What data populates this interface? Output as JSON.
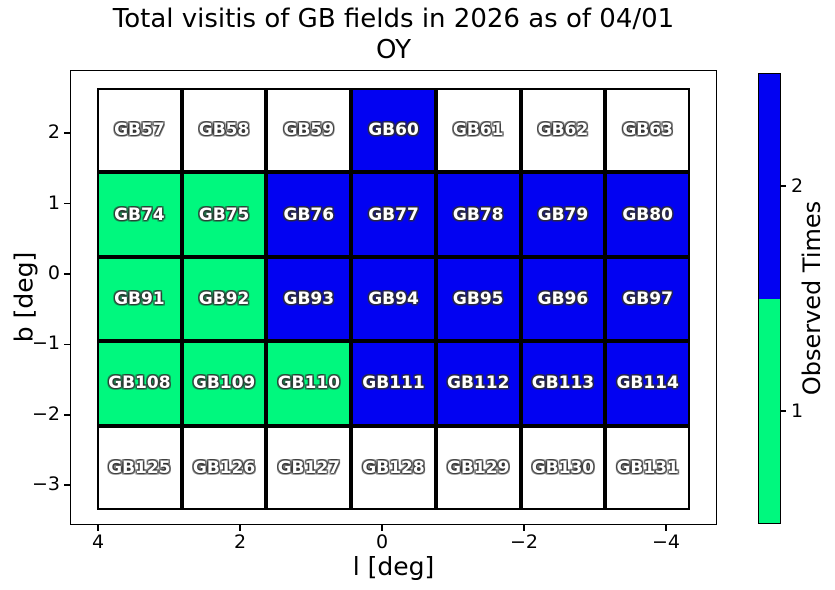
{
  "chart_data": {
    "type": "heatmap",
    "title_line1": "Total visitis of GB fields in 2026 as of 04/01",
    "title_line2": "OY",
    "xlabel": "l [deg]",
    "ylabel": "b [deg]",
    "x_ticks": [
      4,
      2,
      0,
      -2,
      -4
    ],
    "y_ticks": [
      2,
      1,
      0,
      -1,
      -2,
      -3
    ],
    "x_axis_inverted": true,
    "grid": false,
    "value_meaning": "observed times per field (0 = not observed/white)",
    "value_colors": {
      "0": "#ffffff",
      "1": "#00f87e",
      "2": "#0202f2"
    },
    "colorbar": {
      "label": "Observed Times",
      "tick_values": [
        2,
        1
      ],
      "segments_top_to_bottom": [
        {
          "value": 2,
          "color": "#0202f2"
        },
        {
          "value": 1,
          "color": "#00f87e"
        }
      ]
    },
    "rows": [
      {
        "cells": [
          {
            "label": "GB57",
            "value": 0
          },
          {
            "label": "GB58",
            "value": 0
          },
          {
            "label": "GB59",
            "value": 0
          },
          {
            "label": "GB60",
            "value": 2
          },
          {
            "label": "GB61",
            "value": 0
          },
          {
            "label": "GB62",
            "value": 0
          },
          {
            "label": "GB63",
            "value": 0
          }
        ]
      },
      {
        "cells": [
          {
            "label": "GB74",
            "value": 1
          },
          {
            "label": "GB75",
            "value": 1
          },
          {
            "label": "GB76",
            "value": 2
          },
          {
            "label": "GB77",
            "value": 2
          },
          {
            "label": "GB78",
            "value": 2
          },
          {
            "label": "GB79",
            "value": 2
          },
          {
            "label": "GB80",
            "value": 2
          }
        ]
      },
      {
        "cells": [
          {
            "label": "GB91",
            "value": 1
          },
          {
            "label": "GB92",
            "value": 1
          },
          {
            "label": "GB93",
            "value": 2
          },
          {
            "label": "GB94",
            "value": 2
          },
          {
            "label": "GB95",
            "value": 2
          },
          {
            "label": "GB96",
            "value": 2
          },
          {
            "label": "GB97",
            "value": 2
          }
        ]
      },
      {
        "cells": [
          {
            "label": "GB108",
            "value": 1
          },
          {
            "label": "GB109",
            "value": 1
          },
          {
            "label": "GB110",
            "value": 1
          },
          {
            "label": "GB111",
            "value": 2
          },
          {
            "label": "GB112",
            "value": 2
          },
          {
            "label": "GB113",
            "value": 2
          },
          {
            "label": "GB114",
            "value": 2
          }
        ]
      },
      {
        "cells": [
          {
            "label": "GB125",
            "value": 0
          },
          {
            "label": "GB126",
            "value": 0
          },
          {
            "label": "GB127",
            "value": 0
          },
          {
            "label": "GB128",
            "value": 0
          },
          {
            "label": "GB129",
            "value": 0
          },
          {
            "label": "GB130",
            "value": 0
          },
          {
            "label": "GB131",
            "value": 0
          }
        ]
      }
    ]
  }
}
